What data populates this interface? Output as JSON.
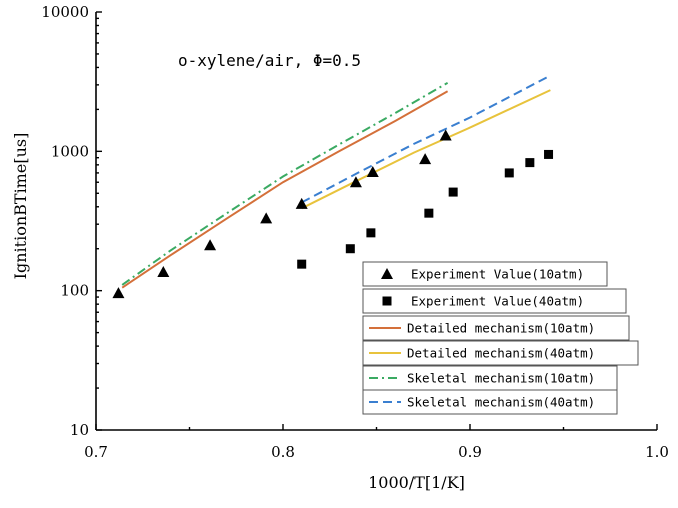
{
  "chart_data": {
    "type": "line",
    "annotation": "o-xylene/air, Φ=0.5",
    "xlabel": "1000/T[1/K]",
    "ylabel": "IgnitionBTime[us]",
    "xlim": [
      0.7,
      1.0
    ],
    "ylim": [
      10,
      10000
    ],
    "yscale": "log",
    "x_ticks": [
      0.7,
      0.8,
      0.9,
      1.0
    ],
    "x_tick_labels": [
      "0.7",
      "0.8",
      "0.9",
      "1.0"
    ],
    "y_ticks": [
      10,
      100,
      1000,
      10000
    ],
    "y_tick_labels": [
      "10",
      "100",
      "1000",
      "10000"
    ],
    "grid": false,
    "legend_position": "bottom-right",
    "series": [
      {
        "name": "Experiment Value(10atm)",
        "kind": "scatter",
        "marker": "triangle",
        "color": "#000000",
        "x": [
          0.712,
          0.736,
          0.761,
          0.791,
          0.81,
          0.839,
          0.848,
          0.876,
          0.887
        ],
        "y": [
          96,
          136,
          212,
          330,
          420,
          600,
          710,
          880,
          1300
        ]
      },
      {
        "name": "Experiment Value(40atm)",
        "kind": "scatter",
        "marker": "square",
        "color": "#000000",
        "x": [
          0.81,
          0.836,
          0.847,
          0.878,
          0.891,
          0.921,
          0.932,
          0.942
        ],
        "y": [
          155,
          200,
          260,
          360,
          510,
          700,
          830,
          950
        ]
      },
      {
        "name": "Detailed mechanism(10atm)",
        "kind": "line",
        "dash": "solid",
        "color": "#d4703a",
        "x": [
          0.714,
          0.74,
          0.77,
          0.8,
          0.83,
          0.86,
          0.888
        ],
        "y": [
          105,
          180,
          330,
          600,
          1000,
          1650,
          2700
        ]
      },
      {
        "name": "Detailed mechanism(40atm)",
        "kind": "line",
        "dash": "solid",
        "color": "#e8c33c",
        "x": [
          0.81,
          0.84,
          0.87,
          0.9,
          0.943
        ],
        "y": [
          390,
          620,
          980,
          1480,
          2750
        ]
      },
      {
        "name": "Skeletal mechanism(10atm)",
        "kind": "line",
        "dash": "dashdot",
        "color": "#3aaa62",
        "x": [
          0.714,
          0.74,
          0.77,
          0.8,
          0.83,
          0.86,
          0.888
        ],
        "y": [
          110,
          195,
          360,
          660,
          1120,
          1880,
          3100
        ]
      },
      {
        "name": "Skeletal mechanism(40atm)",
        "kind": "line",
        "dash": "dashed",
        "color": "#3a7fd0",
        "x": [
          0.81,
          0.84,
          0.87,
          0.9,
          0.943
        ],
        "y": [
          430,
          700,
          1130,
          1750,
          3500
        ]
      }
    ]
  }
}
